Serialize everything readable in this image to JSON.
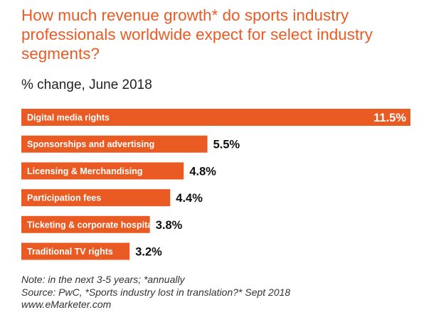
{
  "title": "How much revenue growth* do sports industry professionals worldwide expect for select industry segments?",
  "subtitle": "% change, June 2018",
  "notes": {
    "note": "Note: in the next 3-5 years; *annually",
    "source": "Source: PwC, *Sports industry lost in translation?* Sept 2018",
    "site": "www.eMarketer.com"
  },
  "colors": {
    "bar": "#ea5b24",
    "title": "#ea5b24",
    "bar_label": "#ffffff",
    "value_label": "#111111"
  },
  "chart_data": {
    "type": "bar",
    "orientation": "horizontal",
    "title": "How much revenue growth* do sports industry professionals worldwide expect for select industry segments?",
    "subtitle": "% change, June 2018",
    "categories": [
      "Digital media rights",
      "Sponsorships and advertising",
      "Licensing & Merchandising",
      "Participation fees",
      "Ticketing & corporate hospitality",
      "Traditional TV rights"
    ],
    "values": [
      11.5,
      5.5,
      4.8,
      4.4,
      3.8,
      3.2
    ],
    "value_labels": [
      "11.5%",
      "5.5%",
      "4.8%",
      "4.4%",
      "3.8%",
      "3.2%"
    ],
    "unit": "%",
    "xlim": [
      0,
      11.5
    ],
    "grid": false,
    "legend": "none"
  }
}
